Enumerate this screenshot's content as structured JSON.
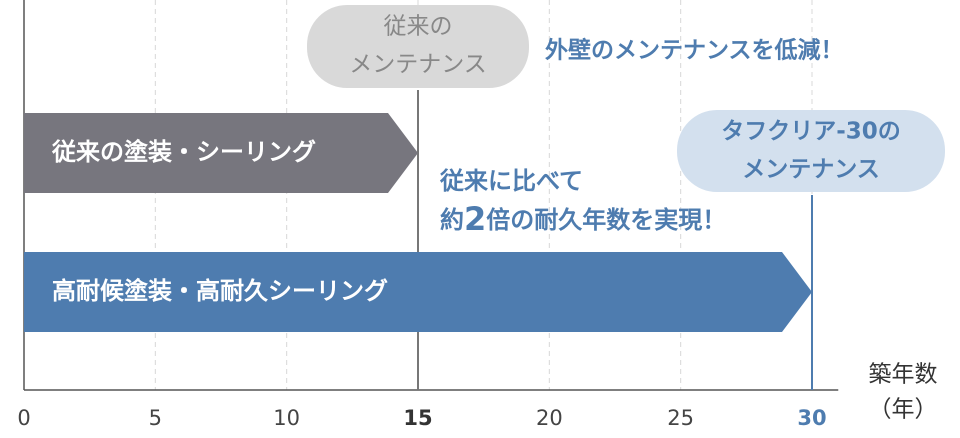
{
  "chart_data": {
    "type": "bar",
    "orientation": "horizontal",
    "categories": [
      "従来の塗装・シーリング",
      "高耐候塗装・高耐久シーリング"
    ],
    "values": [
      15,
      30
    ],
    "colors": [
      "#77767e",
      "#4e7caf"
    ],
    "xlim": [
      0,
      31
    ],
    "xticks": [
      0,
      5,
      10,
      15,
      20,
      25,
      30
    ],
    "grid": true,
    "x_label": [
      "築年数",
      "（年）"
    ],
    "callout_old": [
      "従来の",
      "メンテナンス"
    ],
    "callout_new": [
      "タフクリア-30の",
      "メンテナンス"
    ],
    "note_top": "外壁のメンテナンスを低減！",
    "note_middle": [
      [
        "従来に比べて"
      ],
      [
        "約",
        "2",
        "倍の耐久年数を実現！"
      ]
    ]
  }
}
